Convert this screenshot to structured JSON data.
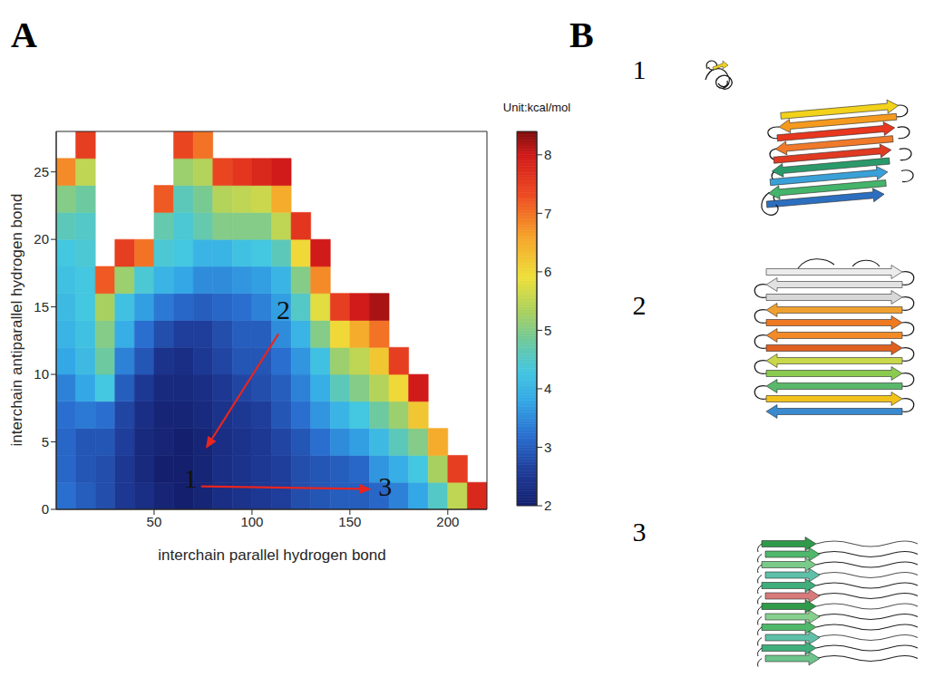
{
  "chart_data": {
    "type": "heatmap",
    "panel_label": "A",
    "x_label": "interchain parallel hydrogen bond",
    "y_label": "interchain antiparallel hydrogen bond",
    "xlim": [
      0,
      220
    ],
    "ylim": [
      0,
      28
    ],
    "xticks": [
      50,
      100,
      150,
      200
    ],
    "yticks": [
      0,
      5,
      10,
      15,
      20,
      25
    ],
    "grid": false,
    "x_bins": [
      0,
      10,
      20,
      30,
      40,
      50,
      60,
      70,
      80,
      90,
      100,
      110,
      120,
      130,
      140,
      150,
      160,
      170,
      180,
      190,
      200,
      210,
      220
    ],
    "y_bins": [
      0,
      2,
      4,
      6,
      8,
      10,
      12,
      14,
      16,
      18,
      20,
      22,
      24,
      26,
      28
    ],
    "z": [
      [
        3.2,
        3.0,
        2.8,
        2.5,
        2.3,
        2.1,
        2.0,
        2.1,
        2.3,
        2.4,
        2.5,
        2.6,
        2.8,
        2.9,
        3.0,
        3.0,
        3.1,
        3.4,
        3.8,
        4.5,
        5.5,
        7.8
      ],
      [
        3.1,
        2.9,
        2.8,
        2.5,
        2.2,
        2.0,
        2.0,
        2.1,
        2.3,
        2.4,
        2.5,
        2.6,
        2.8,
        2.9,
        3.0,
        3.1,
        3.6,
        3.9,
        4.3,
        5.3,
        7.5,
        null
      ],
      [
        3.1,
        2.9,
        2.9,
        2.6,
        2.2,
        2.1,
        2.0,
        2.1,
        2.3,
        2.4,
        2.5,
        2.7,
        2.9,
        3.2,
        3.5,
        3.7,
        4.1,
        4.6,
        5.0,
        6.5,
        null,
        null
      ],
      [
        3.2,
        3.3,
        3.2,
        2.7,
        2.3,
        2.1,
        2.1,
        2.2,
        2.4,
        2.5,
        2.6,
        2.9,
        3.2,
        3.6,
        4.0,
        4.3,
        4.8,
        5.2,
        6.2,
        null,
        null,
        null
      ],
      [
        3.4,
        3.8,
        4.3,
        3.0,
        2.5,
        2.2,
        2.2,
        2.3,
        2.5,
        2.7,
        2.8,
        3.0,
        3.4,
        3.9,
        4.6,
        5.0,
        5.4,
        6.0,
        8.0,
        null,
        null,
        null
      ],
      [
        3.8,
        4.1,
        4.8,
        3.4,
        2.9,
        2.4,
        2.3,
        2.5,
        2.7,
        2.9,
        2.9,
        3.2,
        3.6,
        4.2,
        5.2,
        5.5,
        6.2,
        7.5,
        null,
        null,
        null,
        null
      ],
      [
        4.0,
        4.2,
        5.0,
        3.9,
        3.2,
        2.8,
        2.6,
        2.6,
        2.8,
        3.0,
        3.0,
        3.5,
        4.0,
        5.0,
        6.0,
        6.5,
        7.0,
        null,
        null,
        null,
        null,
        null
      ],
      [
        4.1,
        4.3,
        5.3,
        4.2,
        3.7,
        3.3,
        3.1,
        3.0,
        3.1,
        3.2,
        3.4,
        3.7,
        4.5,
        5.8,
        7.5,
        8.0,
        8.2,
        null,
        null,
        null,
        null,
        null
      ],
      [
        4.2,
        4.3,
        7.2,
        5.2,
        4.4,
        4.0,
        3.8,
        3.5,
        3.5,
        3.6,
        3.7,
        4.0,
        5.0,
        6.8,
        null,
        null,
        null,
        null,
        null,
        null,
        null,
        null
      ],
      [
        4.3,
        4.4,
        null,
        7.5,
        7.0,
        4.4,
        4.3,
        4.0,
        4.0,
        4.2,
        4.3,
        4.6,
        6.0,
        8.0,
        null,
        null,
        null,
        null,
        null,
        null,
        null,
        null
      ],
      [
        4.6,
        4.5,
        null,
        null,
        null,
        4.7,
        4.4,
        4.7,
        5.0,
        5.0,
        5.0,
        5.5,
        7.6,
        null,
        null,
        null,
        null,
        null,
        null,
        null,
        null,
        null
      ],
      [
        5.0,
        4.8,
        null,
        null,
        null,
        7.2,
        4.6,
        4.9,
        5.4,
        5.5,
        5.6,
        6.5,
        null,
        null,
        null,
        null,
        null,
        null,
        null,
        null,
        null,
        null
      ],
      [
        6.8,
        5.5,
        null,
        null,
        null,
        null,
        5.2,
        5.4,
        7.4,
        7.6,
        7.8,
        8.0,
        null,
        null,
        null,
        null,
        null,
        null,
        null,
        null,
        null,
        null
      ],
      [
        null,
        7.5,
        null,
        null,
        null,
        null,
        7.4,
        7.0,
        null,
        null,
        null,
        null,
        null,
        null,
        null,
        null,
        null,
        null,
        null,
        null,
        null,
        null
      ]
    ],
    "colorbar": {
      "label": "Unit:kcal/mol",
      "range": [
        2,
        8.4
      ],
      "ticks": [
        2,
        3,
        4,
        5,
        6,
        7,
        8
      ]
    },
    "annotations": [
      {
        "text": "1",
        "x": 68.5,
        "y": 2.3
      },
      {
        "text": "2",
        "x": 116,
        "y": 14.8
      },
      {
        "text": "3",
        "x": 168,
        "y": 1.7
      }
    ],
    "arrows": [
      {
        "from": [
          113.5,
          13
        ],
        "to": [
          76.4,
          4.5
        ]
      },
      {
        "from": [
          74,
          1.7
        ],
        "to": [
          161,
          1.5
        ]
      }
    ]
  },
  "panel_b": {
    "panel_label": "B",
    "structures": [
      {
        "label": "1"
      },
      {
        "label": "2"
      },
      {
        "label": "3"
      }
    ]
  }
}
